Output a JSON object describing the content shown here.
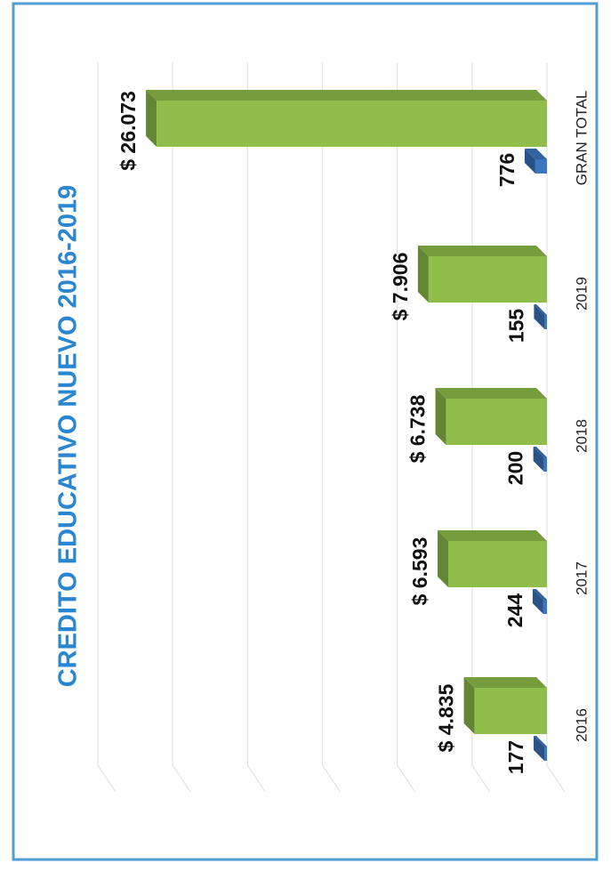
{
  "chart_data": {
    "type": "bar",
    "title": "CREDITO EDUCATIVO NUEVO 2016-2019",
    "categories": [
      "2016",
      "2017",
      "2018",
      "2019",
      "GRAN TOTAL"
    ],
    "series": [
      {
        "color": "#8fbf4a",
        "values": [
          4835,
          6593,
          6738,
          7906,
          26073
        ],
        "value_labels": [
          "$ 4.835",
          "$ 6.593",
          "$ 6.738",
          "$ 7.906",
          "$ 26.073"
        ]
      },
      {
        "color": "#3b77c0",
        "values": [
          177,
          244,
          200,
          155,
          776
        ]
      }
    ],
    "ylim": [
      0,
      30000
    ],
    "yticks": [
      0,
      5000,
      10000,
      15000,
      20000,
      25000,
      30000
    ],
    "grid": true
  }
}
